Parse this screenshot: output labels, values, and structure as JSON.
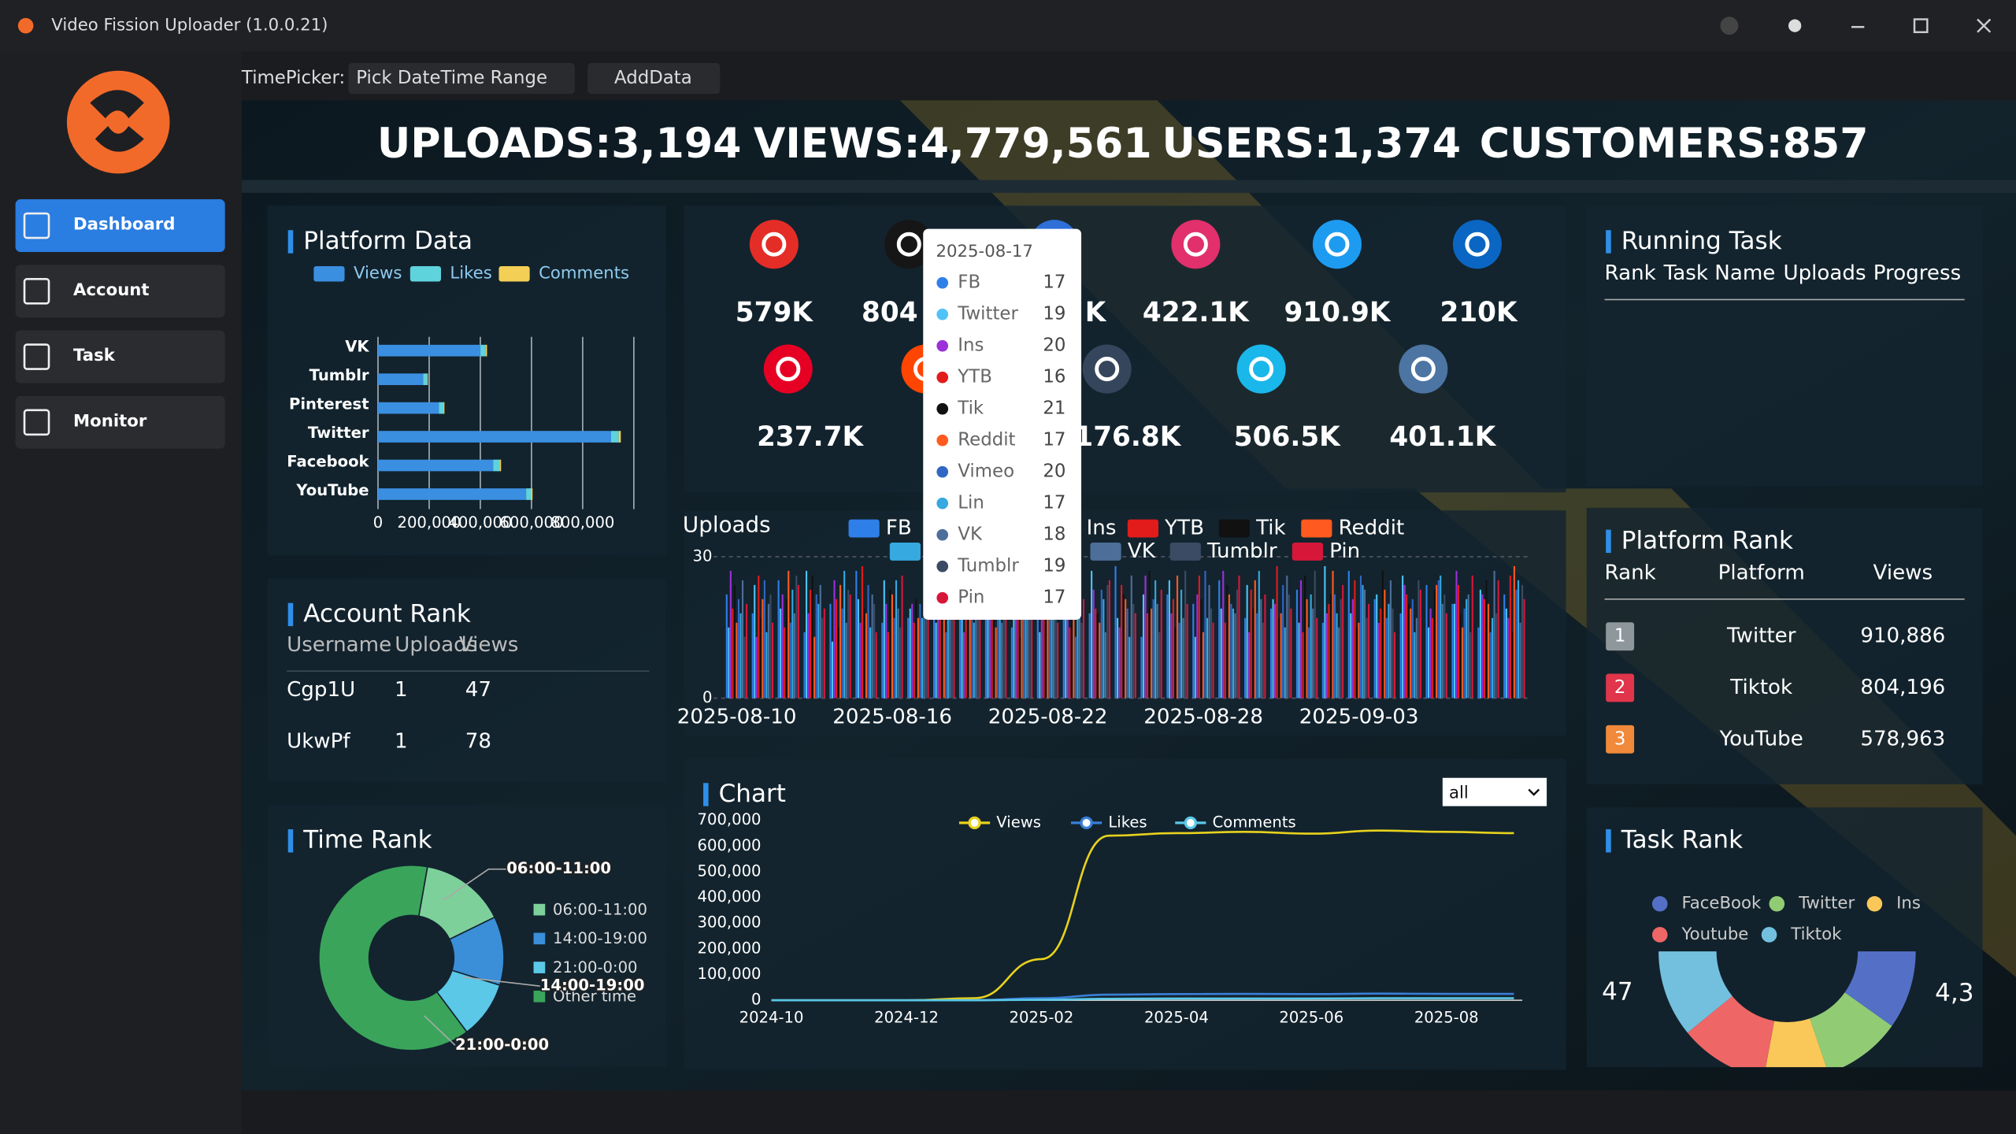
{
  "app": {
    "title": "Video Fission Uploader (1.0.0.21)"
  },
  "sidebar": {
    "nav": [
      "Dashboard",
      "Account",
      "Task",
      "Monitor"
    ]
  },
  "toolbar": {
    "label": "TimePicker:",
    "picker": "Pick DateTime Range",
    "button": "AddData"
  },
  "stats": [
    "UPLOADS:3,194",
    "VIEWS:4,779,561",
    "USERS:1,374",
    "CUSTOMERS:857"
  ],
  "platform_cards": [
    "579K",
    "804",
    "K",
    "422.1K",
    "910.9K",
    "210K",
    "237.7K",
    "176.8K",
    "506.5K",
    "401.1K"
  ],
  "account_rank": {
    "title": "Account Rank",
    "headers": [
      "Username",
      "Uploads",
      "Views"
    ],
    "rows": [
      [
        "Cgp1U",
        "1",
        "47"
      ],
      [
        "UkwPf",
        "1",
        "78"
      ]
    ]
  },
  "running_task": {
    "title": "Running Task",
    "headers": [
      "Rank",
      "Task Name",
      "Uploads",
      "Progress"
    ]
  },
  "platform_rank": {
    "title": "Platform Rank",
    "headers": [
      "Rank",
      "Platform",
      "Views"
    ],
    "rows": [
      [
        "1",
        "Twitter",
        "910,886"
      ],
      [
        "2",
        "Tiktok",
        "804,196"
      ],
      [
        "3",
        "YouTube",
        "578,963"
      ]
    ]
  },
  "uploads_tooltip": {
    "title": "2025-08-17"
  },
  "chart_select": "all",
  "chart_data": [
    {
      "type": "bar",
      "horizontal": true,
      "stacked": true,
      "title": "Platform Data",
      "categories": [
        "VK",
        "Tumblr",
        "Pinterest",
        "Twitter",
        "Facebook",
        "YouTube"
      ],
      "series": [
        {
          "name": "Views",
          "color": "#3b8fe0",
          "values": [
            401100,
            176800,
            237700,
            910900,
            450000,
            579000
          ]
        },
        {
          "name": "Likes",
          "color": "#5fd3dc",
          "values": [
            20000,
            15000,
            18000,
            30000,
            25000,
            20000
          ]
        },
        {
          "name": "Comments",
          "color": "#f3cf55",
          "values": [
            5000,
            3000,
            4000,
            8000,
            6000,
            5000
          ]
        }
      ],
      "xlim": [
        0,
        1000000
      ],
      "xticks": [
        0,
        {
          "value": 200000,
          "label": "200,000"
        },
        {
          "value": 400000,
          "label": "400,000"
        },
        {
          "value": 600000,
          "label": "600,000"
        },
        {
          "value": 800000,
          "label": "800,000"
        }
      ],
      "grid": true
    },
    {
      "type": "bar",
      "title": "Uploads",
      "categories": [
        "2025-08-10",
        null,
        null,
        null,
        null,
        null,
        "2025-08-16",
        null,
        null,
        null,
        null,
        null,
        "2025-08-22",
        null,
        null,
        null,
        null,
        null,
        "2025-08-28",
        null,
        null,
        null,
        null,
        null,
        "2025-09-03",
        null,
        null,
        null,
        null,
        null,
        null
      ],
      "series": [
        {
          "name": "FB",
          "color": "#2f7fe8",
          "values": [
            22,
            18,
            25,
            14,
            20,
            27,
            16,
            17,
            23,
            19,
            26,
            15,
            21,
            24,
            18,
            28,
            13,
            22,
            20,
            25,
            17,
            19,
            23,
            16,
            27,
            21,
            18,
            24,
            20,
            15,
            22
          ]
        },
        {
          "name": "Twitter",
          "color": "#4fc3f7",
          "values": [
            15,
            24,
            19,
            27,
            12,
            21,
            25,
            19,
            16,
            23,
            18,
            26,
            14,
            20,
            27,
            17,
            22,
            25,
            13,
            19,
            24,
            21,
            16,
            28,
            18,
            22,
            26,
            15,
            20,
            23,
            19
          ]
        },
        {
          "name": "Ins",
          "color": "#9b30d9",
          "values": [
            27,
            13,
            22,
            18,
            25,
            16,
            20,
            20,
            28,
            14,
            21,
            17,
            25,
            19,
            23,
            15,
            26,
            18,
            22,
            27,
            14,
            20,
            25,
            18,
            21,
            16,
            24,
            19,
            27,
            22,
            17
          ]
        },
        {
          "name": "YTB",
          "color": "#e21b1b",
          "values": [
            19,
            26,
            15,
            23,
            21,
            28,
            14,
            16,
            20,
            25,
            17,
            22,
            27,
            15,
            19,
            24,
            18,
            21,
            26,
            16,
            23,
            28,
            14,
            20,
            25,
            19,
            22,
            17,
            24,
            21,
            26
          ]
        },
        {
          "name": "Tik",
          "color": "#111111",
          "values": [
            24,
            17,
            21,
            26,
            15,
            19,
            23,
            21,
            17,
            22,
            28,
            13,
            20,
            25,
            18,
            22,
            27,
            15,
            21,
            24,
            19,
            17,
            26,
            22,
            15,
            27,
            20,
            23,
            18,
            25,
            14
          ]
        },
        {
          "name": "Reddit",
          "color": "#ff5a1f",
          "values": [
            16,
            21,
            27,
            13,
            24,
            18,
            22,
            17,
            25,
            19,
            15,
            23,
            20,
            27,
            16,
            21,
            19,
            26,
            14,
            22,
            25,
            18,
            21,
            27,
            16,
            23,
            19,
            24,
            15,
            20,
            28
          ]
        },
        {
          "name": "Vimeo",
          "color": "#3067c4",
          "values": [
            21,
            25,
            16,
            22,
            19,
            24,
            17,
            20,
            14,
            27,
            22,
            18,
            25,
            13,
            23,
            19,
            21,
            16,
            27,
            20,
            18,
            24,
            15,
            22,
            26,
            17,
            21,
            25,
            19,
            14,
            23
          ]
        },
        {
          "name": "Lin",
          "color": "#35a9e0",
          "values": [
            18,
            14,
            23,
            20,
            27,
            15,
            25,
            17,
            22,
            16,
            24,
            20,
            18,
            26,
            21,
            13,
            25,
            23,
            17,
            19,
            27,
            15,
            22,
            18,
            24,
            20,
            14,
            26,
            21,
            17,
            25
          ]
        },
        {
          "name": "VK",
          "color": "#4d6e99",
          "values": [
            25,
            20,
            18,
            24,
            16,
            22,
            19,
            18,
            27,
            21,
            16,
            25,
            19,
            22,
            14,
            26,
            20,
            17,
            24,
            18,
            21,
            26,
            19,
            15,
            23,
            25,
            17,
            20,
            22,
            27,
            16
          ]
        },
        {
          "name": "Tumblr",
          "color": "#3b4b63",
          "values": [
            13,
            22,
            26,
            17,
            23,
            20,
            15,
            19,
            21,
            18,
            25,
            19,
            23,
            16,
            24,
            20,
            14,
            27,
            19,
            23,
            16,
            22,
            27,
            21,
            17,
            19,
            25,
            22,
            14,
            18,
            24
          ]
        },
        {
          "name": "Pin",
          "color": "#d6173a",
          "values": [
            20,
            16,
            24,
            19,
            22,
            14,
            26,
            17,
            18,
            24,
            20,
            27,
            16,
            21,
            25,
            18,
            23,
            20,
            16,
            26,
            22,
            19,
            17,
            24,
            20,
            14,
            23,
            18,
            26,
            25,
            21
          ]
        }
      ],
      "ylim": [
        0,
        30
      ],
      "yticks": [
        0,
        30
      ],
      "grid": true
    },
    {
      "type": "line",
      "title": "Chart",
      "categories": [
        "2024-10",
        null,
        "2024-12",
        null,
        "2025-02",
        null,
        "2025-04",
        null,
        "2025-06",
        null,
        "2025-08",
        null
      ],
      "series": [
        {
          "name": "Views",
          "color": "#e8d21d",
          "values": [
            0,
            0,
            0,
            8000,
            160000,
            640000,
            650000,
            655000,
            648000,
            660000,
            655000,
            650000
          ]
        },
        {
          "name": "Likes",
          "color": "#3a7fd8",
          "values": [
            0,
            0,
            0,
            500,
            8000,
            22000,
            24000,
            25000,
            24000,
            26000,
            25000,
            25000
          ]
        },
        {
          "name": "Comments",
          "color": "#5ac8e8",
          "values": [
            0,
            0,
            0,
            100,
            2000,
            6000,
            7000,
            7000,
            7000,
            8000,
            8000,
            8000
          ]
        }
      ],
      "ylim": [
        0,
        700000
      ],
      "yticks": [
        0,
        {
          "value": 100000,
          "label": "100,000"
        },
        {
          "value": 200000,
          "label": "200,000"
        },
        {
          "value": 300000,
          "label": "300,000"
        },
        {
          "value": 400000,
          "label": "400,000"
        },
        {
          "value": 500000,
          "label": "500,000"
        },
        {
          "value": 600000,
          "label": "600,000"
        },
        {
          "value": 700000,
          "label": "700,000"
        }
      ],
      "grid": false
    },
    {
      "type": "pie",
      "title": "Time Rank",
      "categories": [
        "06:00-11:00",
        "14:00-19:00",
        "21:00-0:00",
        "Other time"
      ],
      "values": [
        15,
        12,
        10,
        63
      ],
      "colors": [
        "#7ed09a",
        "#3a8fd8",
        "#5bc8e8",
        "#3aa55a"
      ]
    },
    {
      "type": "pie",
      "title": "Task Rank",
      "categories": [
        "FaceBook",
        "Twitter",
        "Ins",
        "Youtube",
        "Tiktok"
      ],
      "values": [
        4251,
        4300,
        3500,
        4838,
        4700
      ],
      "colors": [
        "#5470c6",
        "#91cc75",
        "#fac858",
        "#ee6666",
        "#73c0de"
      ],
      "annotations": [
        "47",
        "4,3"
      ]
    }
  ]
}
